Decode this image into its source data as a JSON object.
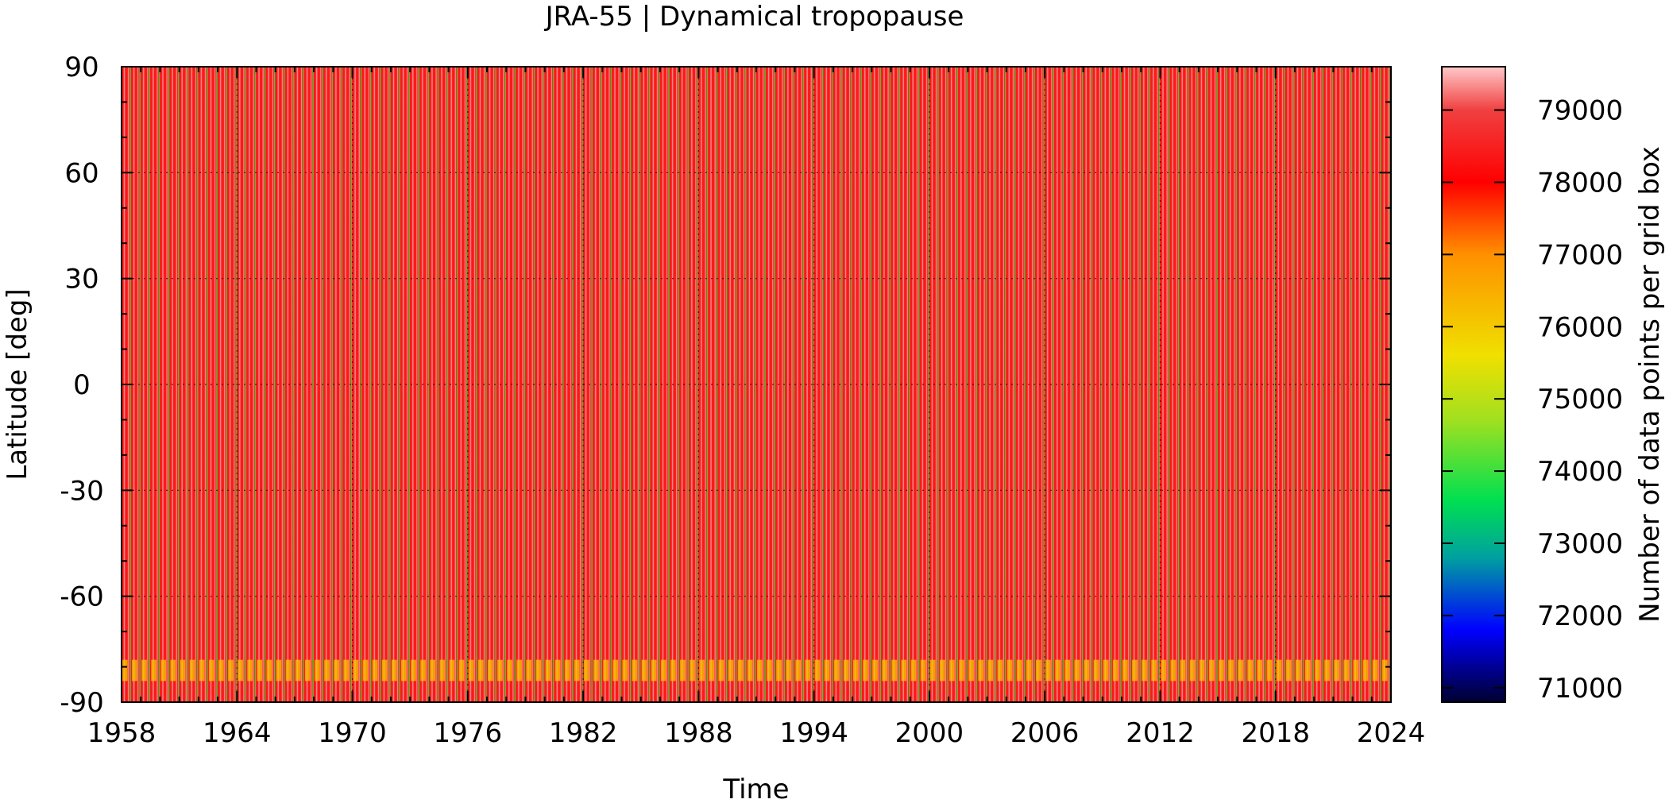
{
  "chart_data": {
    "type": "heatmap",
    "title": "JRA-55 | Dynamical tropopause",
    "xlabel": "Time",
    "ylabel": "Latitude [deg]",
    "colorbar_label": "Number of data points per grid box",
    "xlim": [
      1958,
      2024
    ],
    "ylim": [
      -90,
      90
    ],
    "x_ticks": [
      "1958",
      "1964",
      "1970",
      "1976",
      "1982",
      "1988",
      "1994",
      "2000",
      "2006",
      "2012",
      "2018",
      "2024"
    ],
    "y_ticks": [
      "90",
      "60",
      "30",
      "0",
      "-30",
      "-60",
      "-90"
    ],
    "colorbar_range": [
      70800,
      79600
    ],
    "colorbar_ticks": [
      "79000",
      "78000",
      "77000",
      "76000",
      "75000",
      "74000",
      "73000",
      "72000",
      "71000"
    ],
    "colormap": [
      {
        "value": 70800,
        "color": "#000030"
      },
      {
        "value": 71800,
        "color": "#0000ff"
      },
      {
        "value": 72800,
        "color": "#00a0a0"
      },
      {
        "value": 73600,
        "color": "#00e050"
      },
      {
        "value": 74700,
        "color": "#a0e020"
      },
      {
        "value": 75600,
        "color": "#f0e000"
      },
      {
        "value": 77000,
        "color": "#ff9000"
      },
      {
        "value": 78000,
        "color": "#ff0000"
      },
      {
        "value": 79000,
        "color": "#f04040"
      },
      {
        "value": 79600,
        "color": "#ffc8c8"
      }
    ],
    "grid": true,
    "pattern": {
      "description_values": {
        "background_value": 78400,
        "peak_value": 79400,
        "minimum_value": 74000,
        "south_polar_band_value": 76000,
        "south_polar_band_lat": [
          -84,
          -78
        ]
      },
      "cycles_per_year": 2,
      "years": [
        1958,
        2024
      ]
    }
  }
}
